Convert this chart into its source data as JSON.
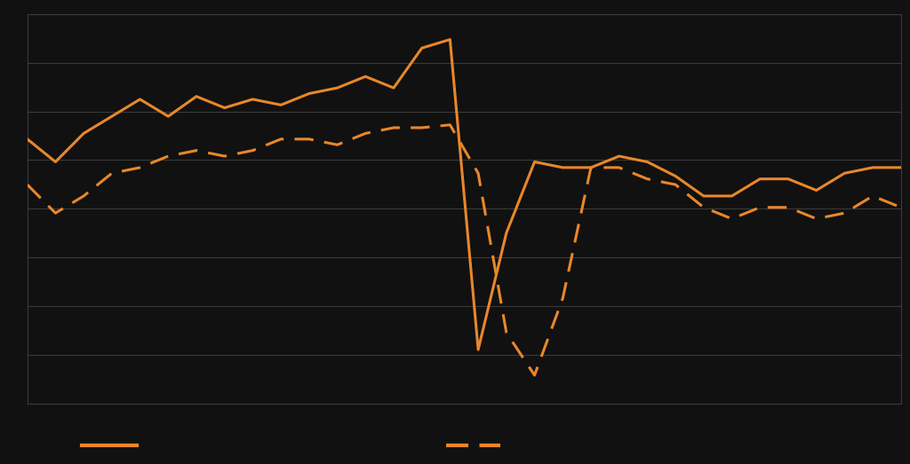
{
  "background_color": "#111111",
  "plot_bg_color": "#111111",
  "grid_color": "#3a3a3a",
  "line_color": "#E8872A",
  "solid_line": [
    38,
    30,
    40,
    46,
    52,
    46,
    53,
    49,
    52,
    50,
    54,
    56,
    60,
    56,
    70,
    73,
    -36,
    5,
    30,
    28,
    28,
    32,
    30,
    25,
    18,
    18,
    24,
    24,
    20,
    26,
    28,
    28
  ],
  "dashed_line": [
    22,
    12,
    18,
    26,
    28,
    32,
    34,
    32,
    34,
    38,
    38,
    36,
    40,
    42,
    42,
    43,
    26,
    -30,
    -45,
    -18,
    28,
    28,
    24,
    22,
    14,
    10,
    14,
    14,
    10,
    12,
    18,
    14
  ],
  "ylim": [
    -55,
    82
  ],
  "xlim": [
    0,
    31
  ],
  "n_gridlines": 9,
  "legend_solid_label": "",
  "legend_dashed_label": "",
  "line_width": 2.2,
  "dpi": 100,
  "figsize": [
    10.24,
    5.23
  ]
}
